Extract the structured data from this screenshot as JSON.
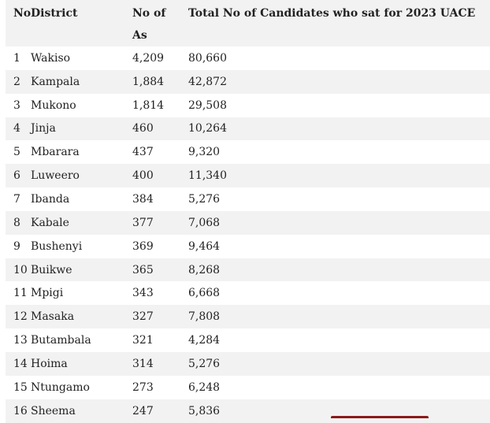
{
  "table": {
    "headers": {
      "no": "No",
      "district": "District",
      "as_line1": "No of",
      "as_line2": "As",
      "total": "Total No of Candidates who sat for 2023 UACE"
    },
    "rows": [
      {
        "no": "1",
        "district": "Wakiso",
        "as": "4,209",
        "total": "80,660"
      },
      {
        "no": "2",
        "district": "Kampala",
        "as": "1,884",
        "total": "42,872"
      },
      {
        "no": "3",
        "district": "Mukono",
        "as": "1,814",
        "total": "29,508"
      },
      {
        "no": "4",
        "district": "Jinja",
        "as": "460",
        "total": "10,264"
      },
      {
        "no": "5",
        "district": "Mbarara",
        "as": "437",
        "total": "9,320"
      },
      {
        "no": "6",
        "district": "Luweero",
        "as": "400",
        "total": "11,340"
      },
      {
        "no": "7",
        "district": "Ibanda",
        "as": "384",
        "total": "5,276"
      },
      {
        "no": "8",
        "district": "Kabale",
        "as": "377",
        "total": "7,068"
      },
      {
        "no": "9",
        "district": "Bushenyi",
        "as": "369",
        "total": "9,464"
      },
      {
        "no": "10",
        "district": "Buikwe",
        "as": "365",
        "total": "8,268"
      },
      {
        "no": "11",
        "district": "Mpigi",
        "as": "343",
        "total": "6,668"
      },
      {
        "no": "12",
        "district": "Masaka",
        "as": "327",
        "total": "7,808"
      },
      {
        "no": "13",
        "district": "Butambala",
        "as": "321",
        "total": "4,284"
      },
      {
        "no": "14",
        "district": "Hoima",
        "as": "314",
        "total": "5,276"
      },
      {
        "no": "15",
        "district": "Ntungamo",
        "as": "273",
        "total": "6,248"
      },
      {
        "no": "16",
        "district": "Sheema",
        "as": "247",
        "total": "5,836"
      }
    ]
  },
  "colors": {
    "stripe": "#f2f2f2",
    "text": "#222222",
    "accent_strip": "#8b1a1a"
  }
}
